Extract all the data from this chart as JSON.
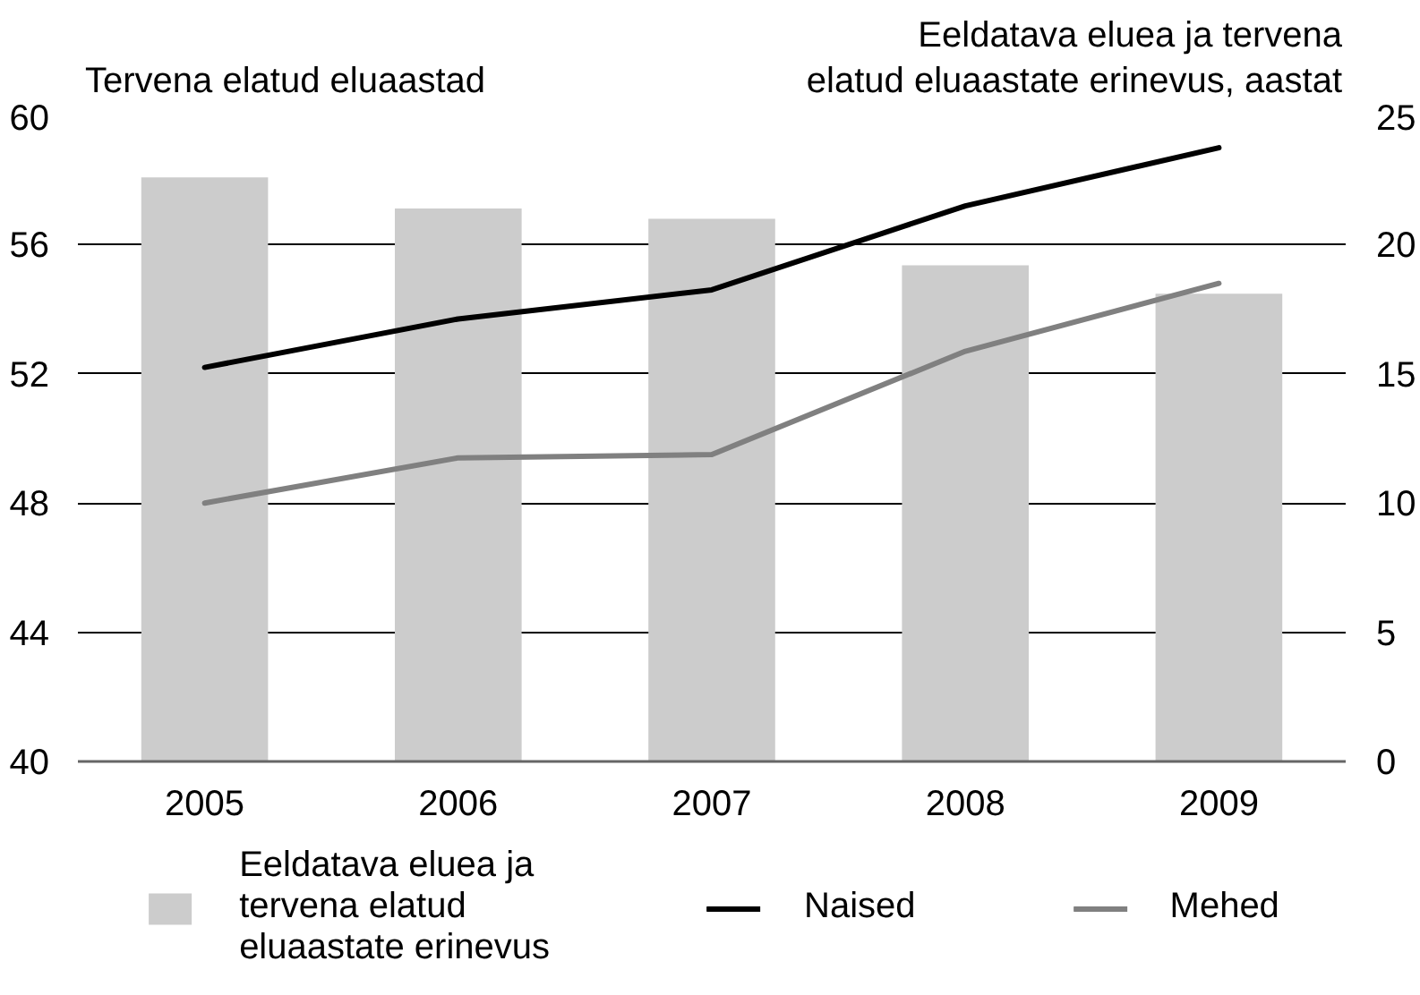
{
  "chart_data": {
    "type": "bar",
    "categories": [
      "2005",
      "2006",
      "2007",
      "2008",
      "2009"
    ],
    "ylabel": "Tervena elatud eluaastad",
    "y2label": "Eeldatava eluea ja tervena elatud eluaastate erinevus, aastat",
    "ylim": [
      40,
      60
    ],
    "yticks": [
      40,
      44,
      48,
      52,
      56,
      60
    ],
    "y2lim": [
      0,
      25
    ],
    "y2ticks": [
      0,
      5,
      10,
      15,
      20,
      25
    ],
    "grid": "y",
    "legend": "bottom",
    "series": [
      {
        "name": "Eeldatava eluea ja tervena elatud eluaastate erinevus",
        "axis": "y2",
        "color": "#cccccc",
        "values": [
          22.6,
          21.4,
          21.0,
          19.2,
          18.1
        ]
      },
      {
        "name": "Naised",
        "type": "line",
        "color": "#000000",
        "values": [
          52.2,
          53.7,
          54.6,
          57.2,
          59.0
        ]
      },
      {
        "name": "Mehed",
        "type": "line",
        "color": "#808080",
        "values": [
          48.0,
          49.4,
          49.5,
          52.7,
          54.8
        ]
      }
    ]
  }
}
